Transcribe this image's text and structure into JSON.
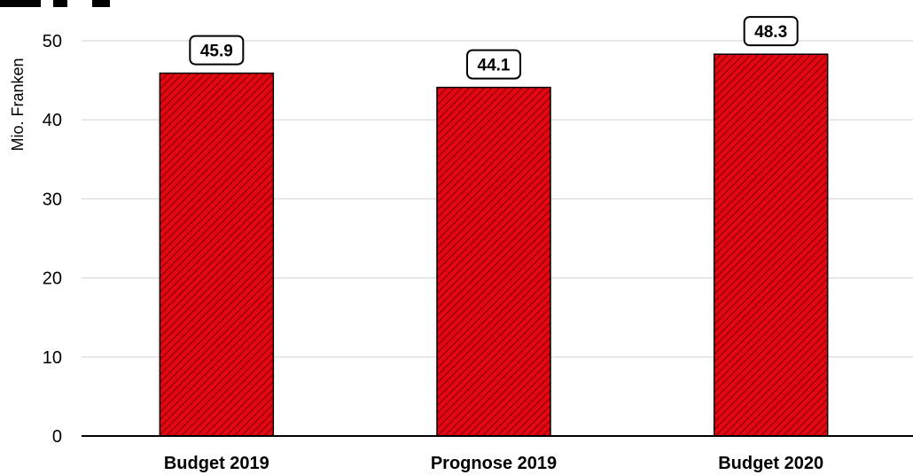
{
  "chart_data": {
    "type": "bar",
    "categories": [
      "Budget 2019",
      "Prognose 2019",
      "Budget 2020"
    ],
    "values": [
      45.9,
      44.1,
      48.3
    ],
    "data_labels": [
      "45.9",
      "44.1",
      "48.3"
    ],
    "xlabel": "",
    "ylabel": "Mio. Franken",
    "ylim": [
      0,
      50
    ],
    "yticks": [
      "0",
      "10",
      "20",
      "30",
      "40",
      "50"
    ],
    "grid": true,
    "legend": "none",
    "colors": {
      "bar_fill": "#e30613",
      "bar_hatch": "#7a0000",
      "bar_edge": "#000000",
      "grid": "#d9d9d9",
      "axis": "#000000"
    }
  }
}
